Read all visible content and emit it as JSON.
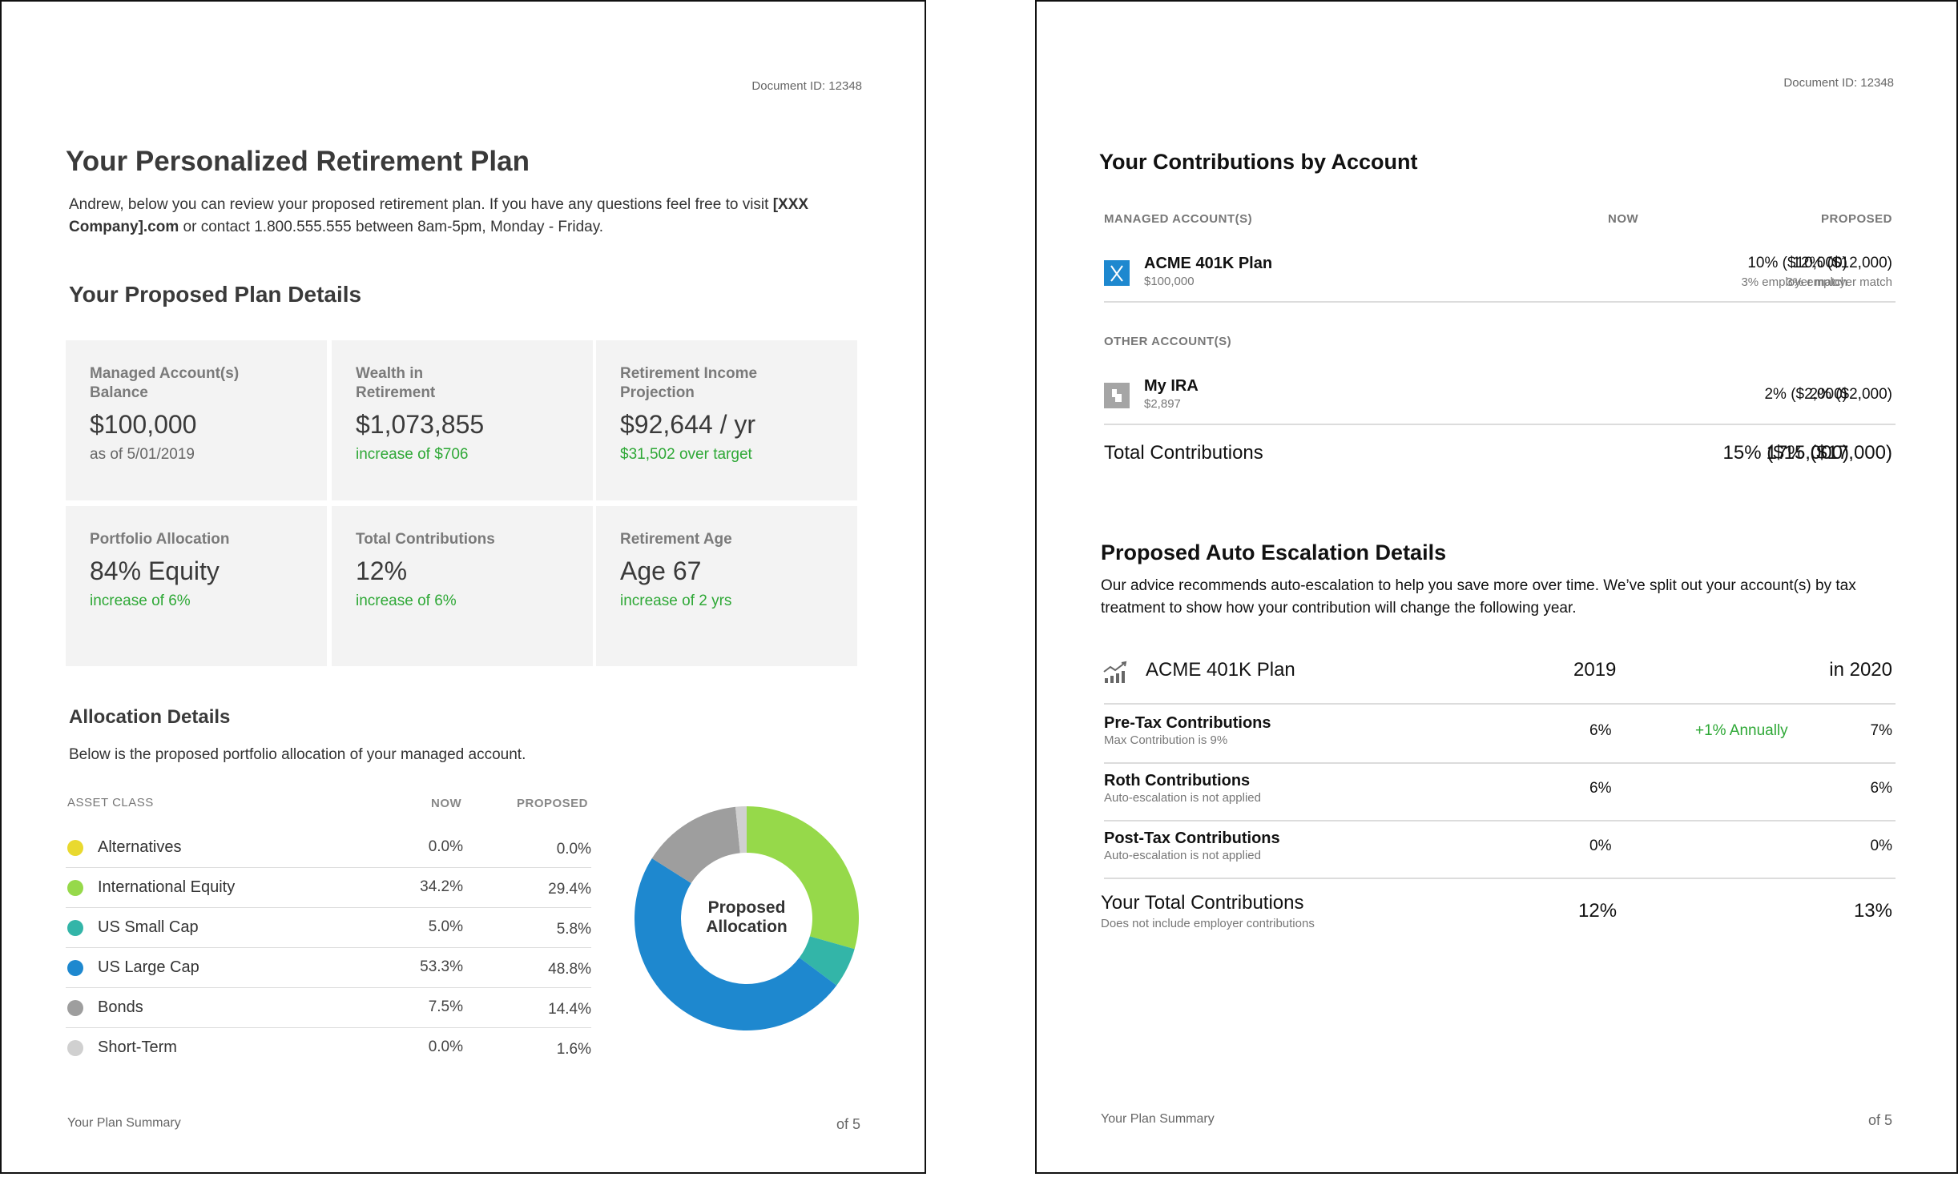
{
  "page1": {
    "document_id": "Document ID: 12348",
    "title": "Your Personalized Retirement Plan",
    "intro_text": "Andrew, below you can review your proposed retirement plan. If you have any questions feel free to visit ",
    "intro_link": "[XXX Company].com",
    "intro_tail": " or contact 1.800.555.555 between 8am-5pm, Monday - Friday.",
    "plan_details_heading": "Your Proposed Plan Details",
    "cards": [
      {
        "label": "Managed Account(s) Balance",
        "value": "$100,000",
        "sub": "as of 5/01/2019",
        "sub_green": false
      },
      {
        "label": "Wealth in Retirement",
        "value": "$1,073,855",
        "sub": "increase of $706",
        "sub_green": true
      },
      {
        "label": "Retirement Income Projection",
        "value": "$92,644 / yr",
        "sub": "$31,502 over target",
        "sub_green": true
      },
      {
        "label": "Portfolio Allocation",
        "value": "84% Equity",
        "sub": "increase of 6%",
        "sub_green": true
      },
      {
        "label": "Total Contributions",
        "value": "12%",
        "sub": "increase of 6%",
        "sub_green": true
      },
      {
        "label": "Retirement Age",
        "value": "Age 67",
        "sub": "increase of 2 yrs",
        "sub_green": true
      }
    ],
    "allocation_heading": "Allocation Details",
    "allocation_desc": "Below is the proposed portfolio allocation of your managed account.",
    "table_headers": {
      "asset": "ASSET CLASS",
      "now": "NOW",
      "proposed": "PROPOSED"
    },
    "allocation_rows": [
      {
        "name": "Alternatives",
        "now": "0.0%",
        "proposed": "0.0%",
        "color": "#e9d92f"
      },
      {
        "name": "International Equity",
        "now": "34.2%",
        "proposed": "29.4%",
        "color": "#96d94a"
      },
      {
        "name": "US Small Cap",
        "now": "5.0%",
        "proposed": "5.8%",
        "color": "#33b5a8"
      },
      {
        "name": "US Large Cap",
        "now": "53.3%",
        "proposed": "48.8%",
        "color": "#1e88cf"
      },
      {
        "name": "Bonds",
        "now": "7.5%",
        "proposed": "14.4%",
        "color": "#9e9e9e"
      },
      {
        "name": "Short-Term",
        "now": "0.0%",
        "proposed": "1.6%",
        "color": "#d0d0d0"
      }
    ],
    "donut_center_line1": "Proposed",
    "donut_center_line2": "Allocation",
    "donut_slices": [
      {
        "name": "International Equity",
        "value": 29.4,
        "color": "#96d94a"
      },
      {
        "name": "US Small Cap",
        "value": 5.8,
        "color": "#33b5a8"
      },
      {
        "name": "US Large Cap",
        "value": 48.8,
        "color": "#1e88cf"
      },
      {
        "name": "Bonds",
        "value": 14.4,
        "color": "#9e9e9e"
      },
      {
        "name": "Short-Term",
        "value": 1.6,
        "color": "#d0d0d0"
      }
    ],
    "footer_left": "Your Plan Summary",
    "footer_right": "of  5"
  },
  "page2": {
    "document_id": "Document ID: 12348",
    "contrib_heading": "Your Contributions by Account",
    "managed_header": "MANAGED ACCOUNT(S)",
    "now_header": "NOW",
    "proposed_header": "PROPOSED",
    "managed_account": {
      "name": "ACME 401K Plan",
      "balance": "$100,000",
      "now": "10% ($10,000)",
      "now_sub": "3% employer match",
      "proposed": "12% ($12,000)",
      "proposed_sub": "3% employer match"
    },
    "other_header": "OTHER ACCOUNT(S)",
    "other_account": {
      "name": "My IRA",
      "balance": "$2,897",
      "now": "2% ($2,000)",
      "proposed": "2% ($2,000)"
    },
    "total_label": "Total Contributions",
    "total_now": "15% ($15,000)",
    "total_proposed": "17% ($17,000)",
    "escalation_heading": "Proposed Auto Escalation Details",
    "escalation_desc": "Our advice recommends auto-escalation to help you save more over time. We’ve split out your account(s) by tax treatment to show how your contribution will change the following year.",
    "plan_name": "ACME 401K Plan",
    "year_now": "2019",
    "year_next": "in 2020",
    "rows": [
      {
        "name": "Pre-Tax Contributions",
        "sub": "Max Contribution is 9%",
        "now": "6%",
        "mid": "+1% Annually",
        "next": "7%"
      },
      {
        "name": "Roth Contributions",
        "sub": "Auto-escalation is not applied",
        "now": "6%",
        "mid": "",
        "next": "6%"
      },
      {
        "name": "Post-Tax Contributions",
        "sub": "Auto-escalation is not applied",
        "now": "0%",
        "mid": "",
        "next": "0%"
      }
    ],
    "your_total_label": "Your Total Contributions",
    "your_total_sub": "Does not include employer contributions",
    "your_total_now": "12%",
    "your_total_next": "13%",
    "footer_left": "Your Plan Summary",
    "footer_right": "of  5"
  }
}
